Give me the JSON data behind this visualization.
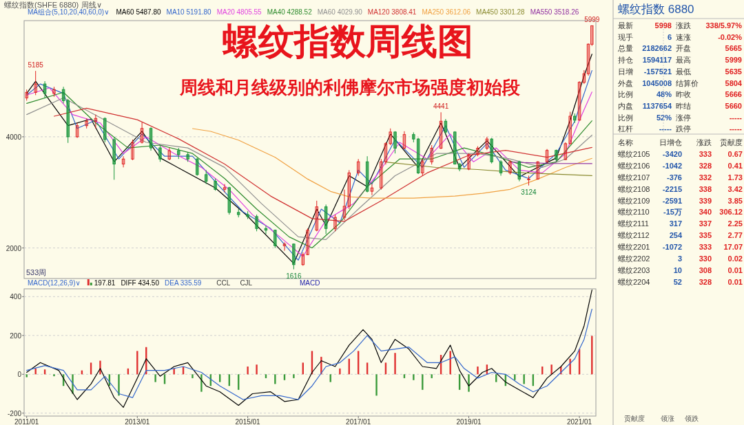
{
  "chart_data": [
    {
      "type": "candlestick",
      "title": "螺纹指数周线图",
      "subtitle": "周线和月线级别的利佛摩尔市场强度初始段",
      "annotations": [
        "螺纹指数(SHFE 6880)",
        "周线∨",
        "MA组合(5,10,20,40,60,0)∨",
        "533周",
        {
          "text": "5185",
          "x": "2011-03",
          "y": 5185
        },
        {
          "text": "1616",
          "x": "2015-11",
          "y": 1616
        },
        {
          "text": "4441",
          "x": "2018-07",
          "y": 4441
        },
        {
          "text": "3124",
          "x": "2020-02",
          "y": 3124
        },
        {
          "text": "5999",
          "x": "2021-03-25",
          "y": 5999
        }
      ],
      "x": [
        "2011-01",
        "2011-03",
        "2011-05",
        "2011-07",
        "2011-09",
        "2011-10",
        "2011-12",
        "2012-02",
        "2012-04",
        "2012-06",
        "2012-08",
        "2012-10",
        "2012-12",
        "2013-02",
        "2013-04",
        "2013-06",
        "2013-08",
        "2013-10",
        "2013-12",
        "2014-02",
        "2014-04",
        "2014-06",
        "2014-08",
        "2014-09",
        "2014-11",
        "2015-01",
        "2015-03",
        "2015-05",
        "2015-07",
        "2015-09",
        "2015-11",
        "2016-01",
        "2016-02",
        "2016-04",
        "2016-06",
        "2016-08",
        "2016-10",
        "2016-11",
        "2017-01",
        "2017-03",
        "2017-04",
        "2017-06",
        "2017-07",
        "2017-08",
        "2017-09",
        "2017-11",
        "2018-01",
        "2018-02",
        "2018-03",
        "2018-05",
        "2018-07",
        "2018-08",
        "2018-10",
        "2018-11",
        "2019-01",
        "2019-03",
        "2019-05",
        "2019-06",
        "2019-08",
        "2019-10",
        "2019-12",
        "2020-02",
        "2020-04",
        "2020-06",
        "2020-08",
        "2020-10",
        "2020-11",
        "2020-12",
        "2021-01",
        "2021-02",
        "2021-03-01",
        "2021-03-25"
      ],
      "ohlc": [
        [
          4700,
          4850,
          4650,
          4800
        ],
        [
          4800,
          5185,
          4750,
          4950
        ],
        [
          4950,
          5000,
          4700,
          4780
        ],
        [
          4780,
          4900,
          4720,
          4850
        ],
        [
          4850,
          4900,
          4600,
          4650
        ],
        [
          4650,
          4680,
          3890,
          4000
        ],
        [
          4000,
          4250,
          3980,
          4200
        ],
        [
          4200,
          4330,
          4150,
          4280
        ],
        [
          4280,
          4400,
          4150,
          4330
        ],
        [
          4330,
          4350,
          3900,
          3950
        ],
        [
          3950,
          4000,
          3227,
          3510
        ],
        [
          3510,
          3650,
          3450,
          3600
        ],
        [
          3600,
          3950,
          3580,
          3900
        ],
        [
          3900,
          4260,
          3880,
          4150
        ],
        [
          4150,
          4170,
          3750,
          3800
        ],
        [
          3800,
          3850,
          3550,
          3600
        ],
        [
          3600,
          3800,
          3580,
          3750
        ],
        [
          3750,
          3800,
          3600,
          3680
        ],
        [
          3680,
          3720,
          3550,
          3600
        ],
        [
          3600,
          3620,
          3300,
          3320
        ],
        [
          3320,
          3400,
          3150,
          3200
        ],
        [
          3200,
          3250,
          3030,
          3055
        ],
        [
          3055,
          3150,
          3000,
          3085
        ],
        [
          3085,
          3100,
          2600,
          2640
        ],
        [
          2640,
          2700,
          2550,
          2600
        ],
        [
          2600,
          2660,
          2520,
          2565
        ],
        [
          2565,
          2600,
          2300,
          2350
        ],
        [
          2350,
          2400,
          2250,
          2320
        ],
        [
          2320,
          2330,
          2000,
          2040
        ],
        [
          2040,
          2100,
          1950,
          2070
        ],
        [
          2070,
          2080,
          1616,
          1700
        ],
        [
          1700,
          1920,
          1680,
          1880
        ],
        [
          1880,
          2350,
          1870,
          2320
        ],
        [
          2320,
          2850,
          2300,
          2740
        ],
        [
          2740,
          2780,
          2250,
          2350
        ],
        [
          2350,
          2600,
          2300,
          2550
        ],
        [
          2550,
          3050,
          2500,
          2750
        ],
        [
          2750,
          3400,
          2700,
          3350
        ],
        [
          3350,
          3600,
          3300,
          3550
        ],
        [
          3550,
          3650,
          3000,
          3020
        ],
        [
          3020,
          3150,
          2950,
          3080
        ],
        [
          3080,
          3600,
          3050,
          3550
        ],
        [
          3550,
          3900,
          3500,
          3877
        ],
        [
          3877,
          4150,
          3850,
          4086
        ],
        [
          4086,
          4100,
          3700,
          3795
        ],
        [
          3795,
          4100,
          3780,
          4040
        ],
        [
          4040,
          4080,
          3900,
          3960
        ],
        [
          3960,
          3980,
          3330,
          3350
        ],
        [
          3350,
          3600,
          3300,
          3550
        ],
        [
          3550,
          3850,
          3500,
          3795
        ],
        [
          3795,
          4441,
          3780,
          4280
        ],
        [
          4280,
          4320,
          4050,
          4086
        ],
        [
          4086,
          4100,
          3500,
          3510
        ],
        [
          3510,
          3530,
          3380,
          3420
        ],
        [
          3420,
          3700,
          3400,
          3680
        ],
        [
          3680,
          3830,
          3650,
          3795
        ],
        [
          3795,
          4000,
          3760,
          3960
        ],
        [
          3960,
          3980,
          3520,
          3550
        ],
        [
          3550,
          3580,
          3300,
          3350
        ],
        [
          3350,
          3580,
          3320,
          3550
        ],
        [
          3550,
          3570,
          3200,
          3240
        ],
        [
          3240,
          3300,
          3124,
          3240
        ],
        [
          3240,
          3560,
          3230,
          3550
        ],
        [
          3550,
          3780,
          3530,
          3755
        ],
        [
          3755,
          3770,
          3560,
          3590
        ],
        [
          3590,
          3900,
          3580,
          3877
        ],
        [
          3877,
          4450,
          3860,
          4370
        ],
        [
          4370,
          4420,
          4250,
          4300
        ],
        [
          4300,
          5000,
          4290,
          4980
        ],
        [
          4980,
          5200,
          4950,
          5135
        ],
        [
          5135,
          5680,
          5100,
          5666
        ],
        [
          5665,
          5999,
          5635,
          5998
        ]
      ],
      "series": [
        {
          "name": "MA60 5487.80",
          "type": "line",
          "color": "#000000",
          "x": [
            "2011-01",
            "2011-03",
            "2011-10",
            "2012-03",
            "2012-08",
            "2013-02",
            "2013-06",
            "2014-06",
            "2015-01",
            "2015-11",
            "2016-04",
            "2016-06",
            "2016-11",
            "2017-03",
            "2017-08",
            "2018-02",
            "2018-07",
            "2018-11",
            "2019-05",
            "2019-12",
            "2020-08",
            "2020-11",
            "2021-02",
            "2021-03-25"
          ],
          "values": [
            4780,
            5000,
            4200,
            4320,
            3550,
            4100,
            3620,
            3080,
            2570,
            1720,
            2700,
            2400,
            3300,
            3100,
            4050,
            3450,
            4250,
            3450,
            3930,
            3280,
            3620,
            4300,
            5100,
            5488
          ]
        },
        {
          "name": "MA10 5191.80",
          "type": "line",
          "color": "#3366cc",
          "x": [
            "2011-01",
            "2011-04",
            "2011-09",
            "2011-12",
            "2012-04",
            "2012-09",
            "2013-02",
            "2013-07",
            "2014-01",
            "2014-07",
            "2014-12",
            "2015-06",
            "2015-12",
            "2016-05",
            "2016-09",
            "2017-01",
            "2017-04",
            "2017-09",
            "2018-03",
            "2018-08",
            "2018-12",
            "2019-05",
            "2019-09",
            "2020-02",
            "2020-08",
            "2020-12",
            "2021-03-25"
          ],
          "values": [
            4750,
            4950,
            4780,
            4150,
            4300,
            3600,
            4050,
            3650,
            3650,
            3100,
            2650,
            2350,
            1780,
            2700,
            2450,
            3400,
            3150,
            3950,
            3450,
            4200,
            3450,
            3880,
            3400,
            3250,
            3700,
            4280,
            5192
          ]
        },
        {
          "name": "MA20 4805.55",
          "type": "line",
          "color": "#e040e0",
          "x": [
            "2011-01",
            "2011-06",
            "2011-11",
            "2012-05",
            "2012-10",
            "2013-03",
            "2013-09",
            "2014-03",
            "2014-09",
            "2015-02",
            "2015-08",
            "2016-01",
            "2016-06",
            "2016-12",
            "2017-05",
            "2017-10",
            "2018-04",
            "2018-09",
            "2019-02",
            "2019-07",
            "2019-12",
            "2020-05",
            "2020-10",
            "2021-01",
            "2021-03-25"
          ],
          "values": [
            4750,
            4880,
            4400,
            4250,
            3700,
            4000,
            3700,
            3450,
            3050,
            2600,
            2200,
            1850,
            2500,
            2800,
            3300,
            3900,
            3600,
            4050,
            3550,
            3800,
            3400,
            3350,
            3700,
            4300,
            4806
          ]
        },
        {
          "name": "MA40 4288.52",
          "type": "line",
          "color": "#2e8b2e",
          "x": [
            "2011-01",
            "2011-09",
            "2012-04",
            "2012-11",
            "2013-06",
            "2014-01",
            "2014-08",
            "2015-03",
            "2015-10",
            "2016-03",
            "2016-09",
            "2017-03",
            "2017-10",
            "2018-05",
            "2018-12",
            "2019-07",
            "2020-02",
            "2020-08",
            "2021-03-25"
          ],
          "values": [
            4600,
            4800,
            4250,
            3800,
            3850,
            3700,
            3250,
            2700,
            2200,
            2000,
            2450,
            3100,
            3600,
            3600,
            3800,
            3650,
            3450,
            3550,
            4289
          ]
        },
        {
          "name": "MA60 4029.90",
          "type": "line",
          "color": "#909090",
          "x": [
            "2011-01",
            "2011-09",
            "2012-06",
            "2013-03",
            "2013-12",
            "2014-08",
            "2015-04",
            "2015-12",
            "2016-06",
            "2017-01",
            "2017-09",
            "2018-06",
            "2019-03",
            "2019-10",
            "2020-05",
            "2020-10",
            "2021-03-25"
          ],
          "values": [
            4400,
            4700,
            4300,
            3900,
            3800,
            3450,
            2800,
            2200,
            2150,
            2700,
            3300,
            3700,
            3700,
            3600,
            3450,
            3600,
            4030
          ]
        },
        {
          "name": "MA120 3808.41",
          "type": "line",
          "color": "#d03030",
          "x": [
            "2011-07",
            "2012-02",
            "2013-01",
            "2013-10",
            "2014-08",
            "2015-06",
            "2016-03",
            "2016-10",
            "2017-06",
            "2018-04",
            "2019-01",
            "2019-09",
            "2020-06",
            "2021-03-25"
          ],
          "values": [
            4370,
            4515,
            4307,
            3963,
            3510,
            2933,
            2528,
            2480,
            2850,
            3350,
            3669,
            3755,
            3632,
            3808
          ]
        },
        {
          "name": "MA250 3612.06",
          "type": "line",
          "color": "#f0a040",
          "x": [
            "2014-01",
            "2014-05",
            "2014-11",
            "2015-07",
            "2016-02",
            "2016-07",
            "2016-11",
            "2017-04",
            "2018-01",
            "2018-10",
            "2019-04",
            "2019-10",
            "2020-04",
            "2020-10",
            "2021-03-25"
          ],
          "values": [
            4147,
            4098,
            3939,
            3632,
            3239,
            3018,
            2920,
            2896,
            2896,
            2933,
            2982,
            3055,
            3239,
            3448,
            3612
          ]
        },
        {
          "name": "MA450 3301.28",
          "type": "line",
          "color": "#8a8a30",
          "x": [
            "2017-07",
            "2018-06",
            "2019-03",
            "2020-01",
            "2021-03-25"
          ],
          "values": [
            3546,
            3448,
            3411,
            3350,
            3301
          ]
        },
        {
          "name": "MA550 3518.26",
          "type": "line",
          "color": "#9030a0",
          "x": [
            "2019-10",
            "2020-06",
            "2021-03-25"
          ],
          "values": [
            3546,
            3521,
            3518
          ]
        }
      ],
      "xlim": [
        "2010-12-15",
        "2021-04-20"
      ],
      "ylim": [
        1450,
        6090
      ],
      "yticks": [
        2000,
        4000
      ],
      "grid": "y",
      "legend": "top",
      "tick_labels": "y"
    },
    {
      "type": "line",
      "annotations": [
        "MACD(12,26,9)∨",
        "CCL",
        "CJL",
        "MACD"
      ],
      "series": [
        {
          "name": "197.81",
          "type": "bar",
          "x": [
            "2011-01",
            "2011-03",
            "2011-05",
            "2011-07",
            "2011-09",
            "2011-11",
            "2012-01",
            "2012-03",
            "2012-05",
            "2012-07",
            "2012-09",
            "2012-11",
            "2013-01",
            "2013-03",
            "2013-05",
            "2013-07",
            "2013-09",
            "2013-11",
            "2014-01",
            "2014-03",
            "2014-05",
            "2014-07",
            "2014-09",
            "2014-11",
            "2015-01",
            "2015-03",
            "2015-05",
            "2015-07",
            "2015-09",
            "2015-11",
            "2016-01",
            "2016-03",
            "2016-05",
            "2016-07",
            "2016-09",
            "2016-11",
            "2017-01",
            "2017-03",
            "2017-05",
            "2017-07",
            "2017-09",
            "2017-11",
            "2018-01",
            "2018-03",
            "2018-05",
            "2018-07",
            "2018-09",
            "2018-11",
            "2019-01",
            "2019-03",
            "2019-05",
            "2019-07",
            "2019-09",
            "2019-11",
            "2020-01",
            "2020-03",
            "2020-05",
            "2020-07",
            "2020-09",
            "2020-11",
            "2021-01",
            "2021-03-25"
          ],
          "values": [
            -15,
            30,
            25,
            -10,
            -60,
            -100,
            20,
            60,
            70,
            -60,
            -110,
            30,
            120,
            140,
            -40,
            -50,
            30,
            40,
            -20,
            -90,
            -60,
            -40,
            -60,
            -80,
            40,
            50,
            -20,
            -50,
            -30,
            -20,
            60,
            120,
            90,
            -40,
            30,
            80,
            120,
            60,
            -110,
            60,
            110,
            -20,
            -30,
            -80,
            -20,
            100,
            120,
            -80,
            -90,
            40,
            50,
            -40,
            -60,
            -30,
            -50,
            -60,
            40,
            50,
            40,
            80,
            130,
            197.81
          ],
          "colors": [
            "#3a9a3a",
            "#e03030",
            "#e03030",
            "#3a9a3a",
            "#3a9a3a",
            "#3a9a3a",
            "#e03030",
            "#e03030",
            "#e03030",
            "#3a9a3a",
            "#3a9a3a",
            "#e03030",
            "#e03030",
            "#e03030",
            "#3a9a3a",
            "#3a9a3a",
            "#e03030",
            "#e03030",
            "#3a9a3a",
            "#3a9a3a",
            "#3a9a3a",
            "#3a9a3a",
            "#3a9a3a",
            "#3a9a3a",
            "#e03030",
            "#e03030",
            "#3a9a3a",
            "#3a9a3a",
            "#3a9a3a",
            "#3a9a3a",
            "#e03030",
            "#e03030",
            "#e03030",
            "#3a9a3a",
            "#e03030",
            "#e03030",
            "#e03030",
            "#e03030",
            "#3a9a3a",
            "#e03030",
            "#e03030",
            "#3a9a3a",
            "#3a9a3a",
            "#3a9a3a",
            "#3a9a3a",
            "#e03030",
            "#e03030",
            "#3a9a3a",
            "#3a9a3a",
            "#e03030",
            "#e03030",
            "#3a9a3a",
            "#3a9a3a",
            "#3a9a3a",
            "#3a9a3a",
            "#3a9a3a",
            "#e03030",
            "#e03030",
            "#e03030",
            "#e03030",
            "#e03030",
            "#e03030"
          ]
        },
        {
          "name": "DIFF 434.50",
          "type": "line",
          "color": "#000000",
          "x": [
            "2011-01",
            "2011-04",
            "2011-08",
            "2011-10",
            "2011-12",
            "2012-03",
            "2012-05",
            "2012-08",
            "2012-10",
            "2013-01",
            "2013-03",
            "2013-06",
            "2013-09",
            "2013-12",
            "2014-04",
            "2014-07",
            "2014-11",
            "2015-02",
            "2015-06",
            "2015-09",
            "2015-12",
            "2016-03",
            "2016-05",
            "2016-08",
            "2016-11",
            "2017-02",
            "2017-04",
            "2017-06",
            "2017-09",
            "2017-12",
            "2018-03",
            "2018-06",
            "2018-09",
            "2018-11",
            "2019-01",
            "2019-04",
            "2019-06",
            "2019-09",
            "2019-12",
            "2020-03",
            "2020-06",
            "2020-09",
            "2020-12",
            "2021-02",
            "2021-03-25"
          ],
          "values": [
            10,
            60,
            20,
            -60,
            -130,
            -50,
            30,
            -120,
            -170,
            -20,
            80,
            -10,
            40,
            60,
            -60,
            -90,
            -160,
            -100,
            -90,
            -140,
            -130,
            10,
            70,
            40,
            150,
            230,
            180,
            60,
            180,
            130,
            40,
            30,
            150,
            20,
            -60,
            10,
            30,
            -40,
            -80,
            -120,
            -20,
            40,
            120,
            250,
            434.5
          ]
        },
        {
          "name": "DEA 335.59",
          "type": "line",
          "color": "#3366cc",
          "x": [
            "2011-01",
            "2011-05",
            "2011-09",
            "2011-12",
            "2012-03",
            "2012-06",
            "2012-09",
            "2012-12",
            "2013-03",
            "2013-07",
            "2013-11",
            "2014-03",
            "2014-07",
            "2014-12",
            "2015-04",
            "2015-08",
            "2015-12",
            "2016-03",
            "2016-06",
            "2016-09",
            "2016-12",
            "2017-03",
            "2017-06",
            "2017-09",
            "2017-12",
            "2018-04",
            "2018-07",
            "2018-10",
            "2018-12",
            "2019-03",
            "2019-06",
            "2019-09",
            "2019-12",
            "2020-03",
            "2020-06",
            "2020-09",
            "2020-12",
            "2021-02",
            "2021-03-25"
          ],
          "values": [
            20,
            45,
            20,
            -80,
            -80,
            -10,
            -100,
            -120,
            20,
            20,
            40,
            10,
            -60,
            -130,
            -110,
            -110,
            -130,
            -60,
            40,
            60,
            120,
            200,
            120,
            130,
            140,
            60,
            60,
            90,
            30,
            -20,
            10,
            0,
            -50,
            -90,
            -60,
            10,
            80,
            180,
            335.59
          ]
        }
      ],
      "xlim": [
        "2010-12-15",
        "2021-04-20"
      ],
      "ylim": [
        -215,
        440
      ],
      "yticks": [
        -200,
        0,
        200,
        400
      ],
      "xticks": [
        {
          "value": "2011-01",
          "label": "2011/01"
        },
        {
          "value": "2013-01",
          "label": "2013/01"
        },
        {
          "value": "2015-01",
          "label": "2015/01"
        },
        {
          "value": "2017-01",
          "label": "2017/01"
        },
        {
          "value": "2019-01",
          "label": "2019/01"
        },
        {
          "value": "2021-01",
          "label": "2021/01"
        }
      ],
      "grid": "y",
      "legend": "top left"
    },
    {
      "type": "other",
      "title": "螺纹指数 6880",
      "annotations": [
        "最新",
        "5998",
        "涨跌",
        "338/5.97%",
        "现手",
        "6",
        "速涨",
        "-0.02%",
        "总量",
        "2182662",
        "开盘",
        "5665",
        "持仓",
        "1594117",
        "最高",
        "5999",
        "日增",
        "-157521",
        "最低",
        "5635",
        "外盘",
        "1045008",
        "结算价",
        "5804",
        "比例",
        "48%",
        "昨收",
        "5666",
        "内盘",
        "1137654",
        "昨结",
        "5660",
        "比例",
        "52%",
        "涨停",
        "-----",
        "杠杆",
        "-----",
        "跌停",
        "-----",
        "名称",
        "日增仓",
        "涨跌",
        "贡献度",
        "螺纹2105",
        "-3420",
        "333",
        "0.67",
        "螺纹2106",
        "-1042",
        "328",
        "0.41",
        "螺纹2107",
        "-376",
        "332",
        "1.73",
        "螺纹2108",
        "-2215",
        "338",
        "3.42",
        "螺纹2109",
        "-2591",
        "339",
        "3.85",
        "螺纹2110",
        "-15万",
        "340",
        "306.12",
        "螺纹2111",
        "317",
        "337",
        "2.25",
        "螺纹2112",
        "254",
        "335",
        "2.77",
        "螺纹2201",
        "-1072",
        "333",
        "17.07",
        "螺纹2202",
        "3",
        "330",
        "0.02",
        "螺纹2203",
        "10",
        "308",
        "0.01",
        "螺纹2204",
        "52",
        "328",
        "0.01",
        "贡献度",
        "领涨",
        "领跌"
      ]
    }
  ]
}
